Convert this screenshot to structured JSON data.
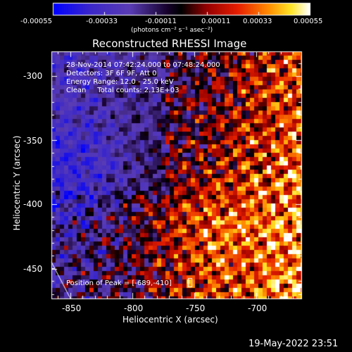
{
  "colorbar": {
    "ticks": [
      "-0.00055",
      "-0.00033",
      "-0.00011",
      "0.00011",
      "0.00033",
      "0.00055"
    ],
    "unit_label": "(photons cm⁻² s⁻¹ asec⁻²)"
  },
  "title": "Reconstructed RHESSI Image",
  "info": {
    "time_range": "28-Nov-2014 07:42:24.000 to 07:48:24.000",
    "detectors": "Detectors: 3F 6F 9F, Att 0",
    "energy": "Energy Range: 12.0 - 25.0 keV",
    "clean": "Clean     Total counts: 2.13E+03"
  },
  "peak": {
    "label": "Position of Peak = [-689,-410]"
  },
  "axes": {
    "xlabel": "Heliocentric X (arcsec)",
    "ylabel": "Heliocentric Y (arcsec)",
    "x_ticks": [
      "-850",
      "-800",
      "-750",
      "-700"
    ],
    "y_ticks": [
      "-300",
      "-350",
      "-400",
      "-450"
    ]
  },
  "footer": {
    "timestamp": "19-May-2022 23:51"
  },
  "colors": {
    "background": "#000000",
    "text": "#ffffff"
  }
}
